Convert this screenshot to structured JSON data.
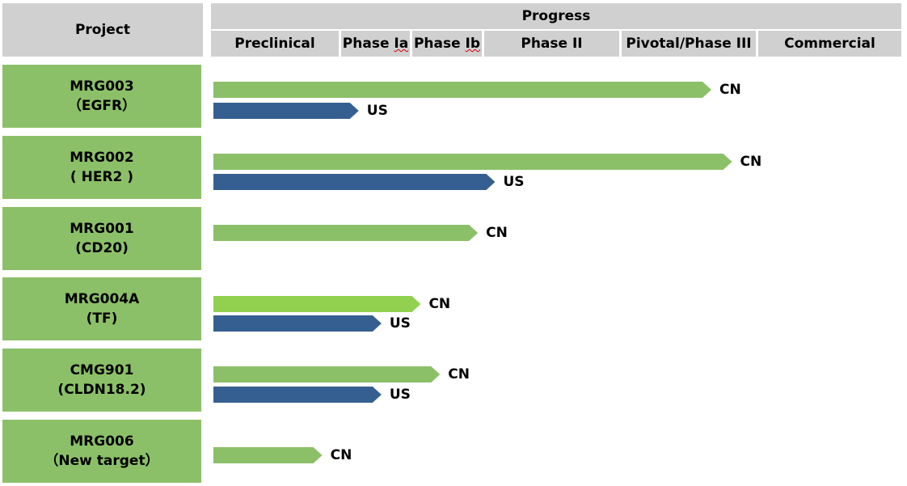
{
  "header": {
    "project_label": "Project",
    "progress_label": "Progress"
  },
  "phases": [
    "Preclinical",
    "Phase Ia",
    "Phase Ib",
    "Phase II",
    "Pivotal/Phase III",
    "Commercial"
  ],
  "colors": {
    "header_bg": "#d0d0d0",
    "project_bg": "#8cc068",
    "cn_bar": "#8cc068",
    "cn_bar_light": "#92d050",
    "us_bar": "#365f91"
  },
  "projects": [
    {
      "name": "MRG003",
      "target": "（EGFR）",
      "bars": [
        {
          "region": "CN",
          "progress_pct": 72.3,
          "color": "#8cc068"
        },
        {
          "region": "US",
          "progress_pct": 21.1,
          "color": "#365f91"
        }
      ]
    },
    {
      "name": "MRG002",
      "target": "( HER2 )",
      "bars": [
        {
          "region": "CN",
          "progress_pct": 75.3,
          "color": "#8cc068"
        },
        {
          "region": "US",
          "progress_pct": 40.9,
          "color": "#365f91"
        }
      ]
    },
    {
      "name": "MRG001",
      "target": "(CD20)",
      "bars": [
        {
          "region": "CN",
          "progress_pct": 38.4,
          "color": "#8cc068"
        }
      ]
    },
    {
      "name": "MRG004A",
      "target": "(TF)",
      "bars": [
        {
          "region": "CN",
          "progress_pct": 30.1,
          "color": "#92d050"
        },
        {
          "region": "US",
          "progress_pct": 24.4,
          "color": "#365f91"
        }
      ]
    },
    {
      "name": "CMG901",
      "target": "(CLDN18.2)",
      "bars": [
        {
          "region": "CN",
          "progress_pct": 32.9,
          "color": "#8cc068"
        },
        {
          "region": "US",
          "progress_pct": 24.4,
          "color": "#365f91"
        }
      ]
    },
    {
      "name": "MRG006",
      "target": "（New target）",
      "bars": [
        {
          "region": "CN",
          "progress_pct": 15.8,
          "color": "#8cc068"
        }
      ]
    }
  ]
}
